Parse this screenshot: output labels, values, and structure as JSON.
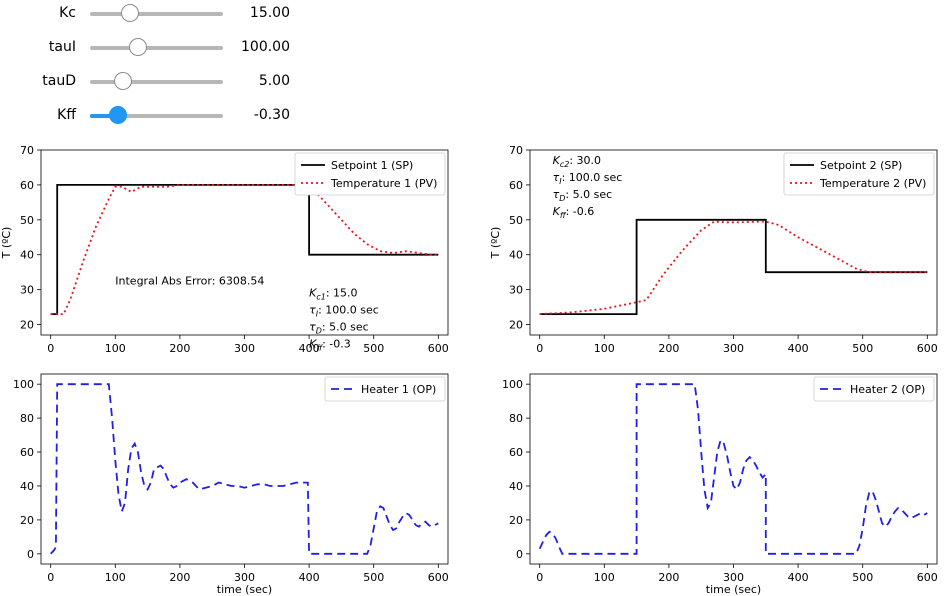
{
  "sliders": [
    {
      "label": "Kc",
      "value_text": "15.00",
      "fraction": 0.3,
      "active": false
    },
    {
      "label": "tauI",
      "value_text": "100.00",
      "fraction": 0.36,
      "active": false
    },
    {
      "label": "tauD",
      "value_text": "5.00",
      "fraction": 0.25,
      "active": false
    },
    {
      "label": "Kff",
      "value_text": "-0.30",
      "fraction": 0.21,
      "active": true
    }
  ],
  "colors": {
    "sp": "#000000",
    "pv": "#e8141c",
    "op": "#1f1fe8",
    "slider_active": "#2196f3",
    "track": "#b7b7b7"
  },
  "chart_data": [
    {
      "type": "line",
      "ylabel": "T (ºC)",
      "xlabel": "",
      "xlim": [
        -15,
        615
      ],
      "ylim": [
        17,
        70
      ],
      "xticks": [
        0,
        100,
        200,
        300,
        400,
        500,
        600
      ],
      "yticks": [
        20,
        30,
        40,
        50,
        60,
        70
      ],
      "legend": "top-right",
      "series": [
        {
          "name": "Setpoint 1 (SP)",
          "style": "solid",
          "color": "#000000",
          "x": [
            0,
            10,
            10,
            400,
            400,
            600
          ],
          "y": [
            23,
            23,
            60,
            60,
            40,
            40
          ]
        },
        {
          "name": "Temperature 1 (PV)",
          "style": "dotted",
          "color": "#e8141c",
          "x": [
            0,
            20,
            30,
            50,
            70,
            90,
            100,
            110,
            125,
            140,
            160,
            180,
            200,
            250,
            300,
            400,
            410,
            430,
            450,
            470,
            490,
            510,
            530,
            550,
            570,
            590,
            600
          ],
          "y": [
            23,
            23,
            27,
            38,
            48,
            56,
            59.5,
            59.5,
            58,
            59.5,
            59.5,
            59.5,
            60,
            60,
            60,
            60,
            58,
            54,
            50,
            46,
            43,
            41,
            40.5,
            41,
            40.5,
            40,
            40
          ]
        }
      ],
      "annotations": [
        {
          "text": "Integral Abs Error: 6308.54"
        },
        {
          "text": "K_c1: 15.0"
        },
        {
          "text": "τ_I: 100.0 sec"
        },
        {
          "text": "τ_D: 5.0 sec"
        },
        {
          "text": "K_ff: -0.3"
        }
      ]
    },
    {
      "type": "line",
      "ylabel": "T (ºC)",
      "xlabel": "",
      "xlim": [
        -15,
        615
      ],
      "ylim": [
        17,
        70
      ],
      "xticks": [
        0,
        100,
        200,
        300,
        400,
        500,
        600
      ],
      "yticks": [
        20,
        30,
        40,
        50,
        60,
        70
      ],
      "legend": "top-right",
      "series": [
        {
          "name": "Setpoint 2 (SP)",
          "style": "solid",
          "color": "#000000",
          "x": [
            0,
            150,
            150,
            350,
            350,
            600
          ],
          "y": [
            23,
            23,
            50,
            50,
            35,
            35
          ]
        },
        {
          "name": "Temperature 2 (PV)",
          "style": "dotted",
          "color": "#e8141c",
          "x": [
            0,
            50,
            100,
            140,
            165,
            190,
            220,
            250,
            270,
            290,
            310,
            340,
            350,
            370,
            400,
            430,
            460,
            490,
            510,
            530,
            560,
            600
          ],
          "y": [
            23,
            23.5,
            24.5,
            26,
            27,
            34,
            41,
            47,
            49.5,
            49.3,
            49.3,
            49.5,
            49.5,
            48.5,
            45,
            42,
            39,
            36,
            35,
            35,
            35,
            35
          ]
        }
      ],
      "annotations": [
        {
          "text": "K_c2: 30.0"
        },
        {
          "text": "τ_I: 100.0 sec"
        },
        {
          "text": "τ_D: 5.0 sec"
        },
        {
          "text": "K_ff: -0.6"
        }
      ]
    },
    {
      "type": "line",
      "ylabel": "",
      "xlabel": "time (sec)",
      "xlim": [
        -15,
        615
      ],
      "ylim": [
        -6,
        106
      ],
      "xticks": [
        0,
        100,
        200,
        300,
        400,
        500,
        600
      ],
      "yticks": [
        0,
        20,
        40,
        60,
        80,
        100
      ],
      "legend": "top-right",
      "series": [
        {
          "name": "Heater 1 (OP)",
          "style": "dashed",
          "color": "#1f1fe8",
          "x": [
            0,
            5,
            8,
            10,
            90,
            95,
            100,
            105,
            110,
            115,
            120,
            125,
            130,
            135,
            140,
            145,
            150,
            155,
            160,
            170,
            175,
            180,
            185,
            190,
            195,
            200,
            210,
            220,
            230,
            240,
            250,
            260,
            270,
            280,
            290,
            300,
            310,
            320,
            330,
            340,
            350,
            360,
            370,
            380,
            390,
            395,
            398,
            400,
            490,
            495,
            500,
            505,
            510,
            515,
            520,
            525,
            530,
            535,
            540,
            545,
            550,
            555,
            560,
            565,
            570,
            575,
            580,
            585,
            590,
            595,
            600
          ],
          "y": [
            0,
            2,
            4,
            100,
            100,
            80,
            55,
            35,
            25,
            30,
            50,
            62,
            65,
            60,
            48,
            40,
            38,
            42,
            50,
            52,
            50,
            45,
            41,
            39,
            40,
            42,
            44,
            42,
            38,
            39,
            40,
            42,
            41,
            40,
            40,
            39,
            40,
            41,
            41,
            40,
            40,
            40,
            41,
            42,
            42,
            42,
            42,
            0,
            0,
            5,
            15,
            25,
            28,
            27,
            22,
            17,
            14,
            15,
            19,
            22,
            24,
            23,
            20,
            17,
            16,
            18,
            19,
            17,
            16,
            17,
            18
          ]
        },
        {
          "name": "",
          "style": "dashed",
          "color": "#1f1fe8",
          "x": [],
          "y": []
        }
      ]
    },
    {
      "type": "line",
      "ylabel": "",
      "xlabel": "time (sec)",
      "xlim": [
        -15,
        615
      ],
      "ylim": [
        -6,
        106
      ],
      "xticks": [
        0,
        100,
        200,
        300,
        400,
        500,
        600
      ],
      "yticks": [
        0,
        20,
        40,
        60,
        80,
        100
      ],
      "legend": "top-right",
      "series": [
        {
          "name": "Heater 2 (OP)",
          "style": "dashed",
          "color": "#1f1fe8",
          "x": [
            0,
            5,
            10,
            15,
            20,
            25,
            30,
            35,
            150,
            150,
            240,
            245,
            250,
            255,
            260,
            265,
            270,
            275,
            280,
            285,
            290,
            295,
            300,
            305,
            310,
            315,
            320,
            325,
            330,
            335,
            340,
            345,
            350,
            350,
            490,
            495,
            500,
            505,
            510,
            515,
            520,
            525,
            530,
            535,
            540,
            545,
            550,
            555,
            560,
            565,
            570,
            575,
            580,
            585,
            590,
            595,
            600
          ],
          "y": [
            3,
            7,
            11,
            13,
            12,
            9,
            4,
            0,
            0,
            100,
            100,
            85,
            60,
            38,
            27,
            30,
            45,
            60,
            67,
            65,
            58,
            48,
            40,
            38,
            42,
            50,
            55,
            57,
            55,
            52,
            48,
            45,
            47,
            0,
            0,
            5,
            15,
            28,
            36,
            37,
            32,
            25,
            18,
            16,
            18,
            22,
            25,
            27,
            26,
            24,
            22,
            21,
            22,
            23,
            24,
            23,
            24
          ]
        }
      ]
    }
  ]
}
